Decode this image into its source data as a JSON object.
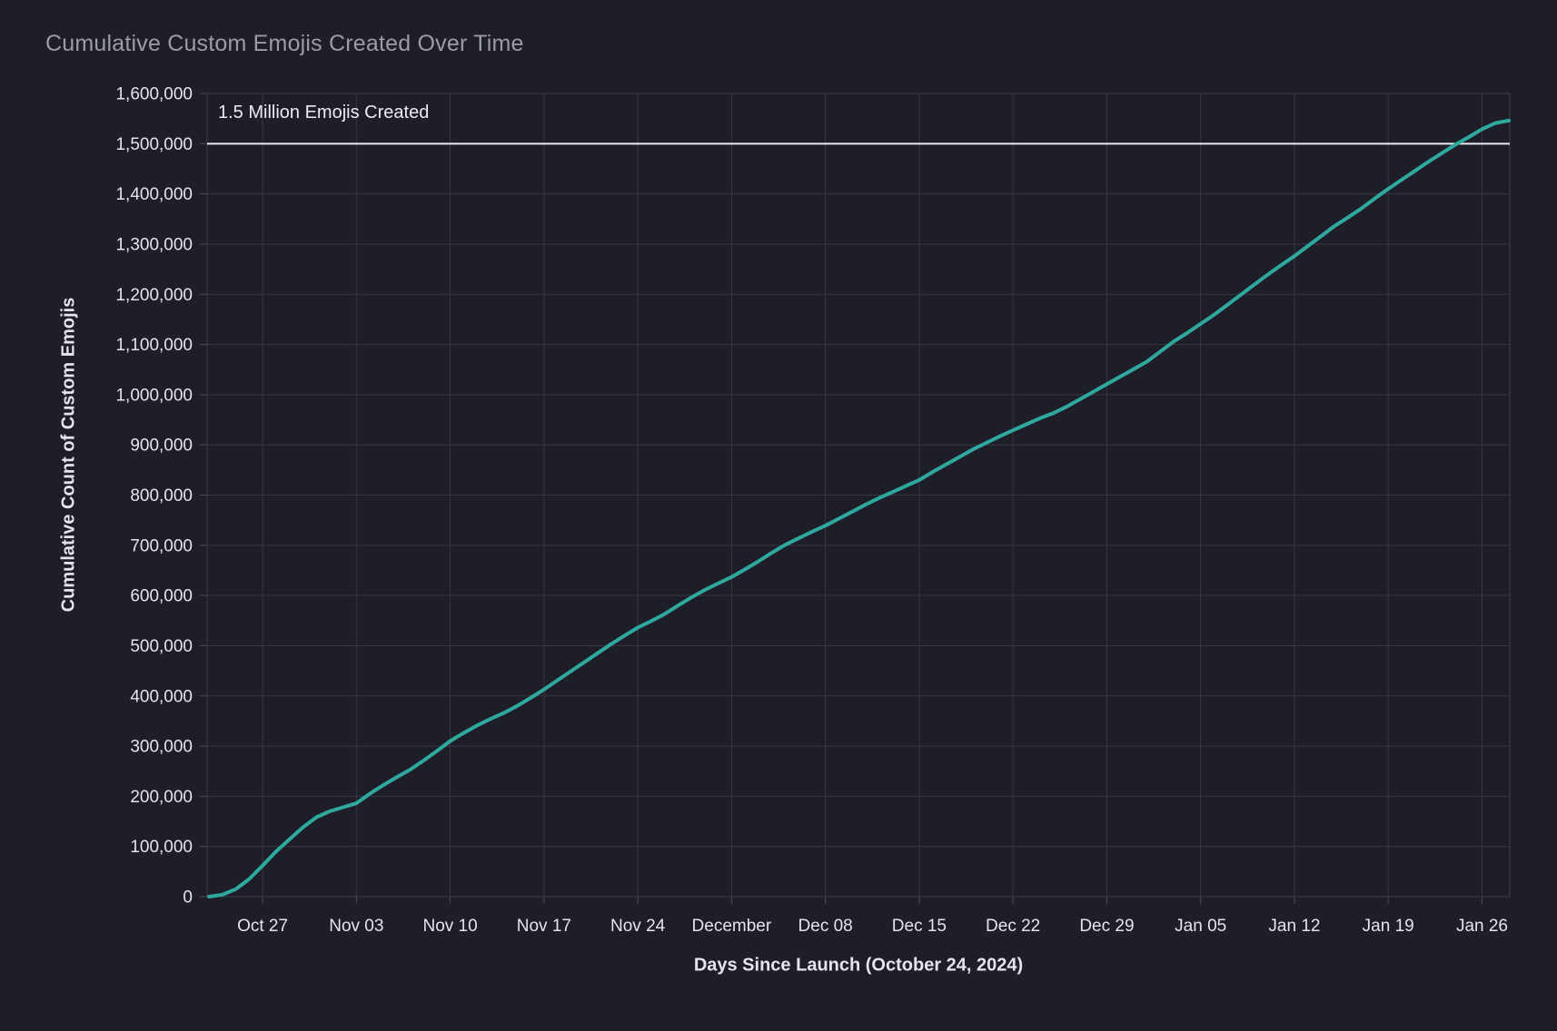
{
  "page": {
    "title": "Cumulative Custom Emojis Created Over Time"
  },
  "colors": {
    "background": "#1e1e28",
    "gridline": "#373742",
    "plot_border": "#3d3d49",
    "tick_mark": "#4b4b57",
    "tick_label": "#e4e4eb",
    "title": "#9b9ca7",
    "axis_title": "#e4e4eb",
    "series_line": "#2fa89e",
    "reference_line": "#ebebf2"
  },
  "chart_data": {
    "type": "line",
    "title": "Cumulative Custom Emojis Created Over Time",
    "xlabel": "Days Since Launch (October 24, 2024)",
    "ylabel": "Cumulative Count of Custom Emojis",
    "x_unit": "days since launch (Oct 24, 2024)",
    "xlim": [
      -1.14,
      96.07
    ],
    "ylim": [
      0,
      1600000
    ],
    "grid": true,
    "legend": "none",
    "x_ticks": [
      {
        "day": 3,
        "label": "Oct 27"
      },
      {
        "day": 10,
        "label": "Nov 03"
      },
      {
        "day": 17,
        "label": "Nov 10"
      },
      {
        "day": 24,
        "label": "Nov 17"
      },
      {
        "day": 31,
        "label": "Nov 24"
      },
      {
        "day": 38,
        "label": "December"
      },
      {
        "day": 45,
        "label": "Dec 08"
      },
      {
        "day": 52,
        "label": "Dec 15"
      },
      {
        "day": 59,
        "label": "Dec 22"
      },
      {
        "day": 66,
        "label": "Dec 29"
      },
      {
        "day": 73,
        "label": "Jan 05"
      },
      {
        "day": 80,
        "label": "Jan 12"
      },
      {
        "day": 87,
        "label": "Jan 19"
      },
      {
        "day": 94,
        "label": "Jan 26"
      }
    ],
    "y_ticks": [
      {
        "value": 0,
        "label": "0"
      },
      {
        "value": 100000,
        "label": "100,000"
      },
      {
        "value": 200000,
        "label": "200,000"
      },
      {
        "value": 300000,
        "label": "300,000"
      },
      {
        "value": 400000,
        "label": "400,000"
      },
      {
        "value": 500000,
        "label": "500,000"
      },
      {
        "value": 600000,
        "label": "600,000"
      },
      {
        "value": 700000,
        "label": "700,000"
      },
      {
        "value": 800000,
        "label": "800,000"
      },
      {
        "value": 900000,
        "label": "900,000"
      },
      {
        "value": 1000000,
        "label": "1,000,000"
      },
      {
        "value": 1100000,
        "label": "1,100,000"
      },
      {
        "value": 1200000,
        "label": "1,200,000"
      },
      {
        "value": 1300000,
        "label": "1,300,000"
      },
      {
        "value": 1400000,
        "label": "1,400,000"
      },
      {
        "value": 1500000,
        "label": "1,500,000"
      },
      {
        "value": 1600000,
        "label": "1,600,000"
      }
    ],
    "reference_line": {
      "value": 1500000,
      "label": "1.5 Million Emojis Created"
    },
    "series": [
      {
        "name": "Cumulative Custom Emojis",
        "color": "#2fa89e",
        "points": [
          [
            -1,
            0
          ],
          [
            0,
            4000
          ],
          [
            1,
            15000
          ],
          [
            2,
            35000
          ],
          [
            3,
            62000
          ],
          [
            4,
            90000
          ],
          [
            5,
            114000
          ],
          [
            6,
            138000
          ],
          [
            7,
            158000
          ],
          [
            8,
            170000
          ],
          [
            9,
            178000
          ],
          [
            10,
            186000
          ],
          [
            11,
            205000
          ],
          [
            12,
            222000
          ],
          [
            13,
            238000
          ],
          [
            14,
            253000
          ],
          [
            15,
            271000
          ],
          [
            16,
            290000
          ],
          [
            17,
            310000
          ],
          [
            18,
            326000
          ],
          [
            19,
            341000
          ],
          [
            20,
            354000
          ],
          [
            21,
            366000
          ],
          [
            22,
            380000
          ],
          [
            23,
            396000
          ],
          [
            24,
            413000
          ],
          [
            25,
            431000
          ],
          [
            26,
            449000
          ],
          [
            27,
            467000
          ],
          [
            28,
            485000
          ],
          [
            29,
            503000
          ],
          [
            30,
            520000
          ],
          [
            31,
            536000
          ],
          [
            32,
            549000
          ],
          [
            33,
            563000
          ],
          [
            34,
            580000
          ],
          [
            35,
            596000
          ],
          [
            36,
            611000
          ],
          [
            37,
            624000
          ],
          [
            38,
            637000
          ],
          [
            39,
            652000
          ],
          [
            40,
            668000
          ],
          [
            41,
            685000
          ],
          [
            42,
            701000
          ],
          [
            43,
            714000
          ],
          [
            44,
            727000
          ],
          [
            45,
            739000
          ],
          [
            46,
            753000
          ],
          [
            47,
            767000
          ],
          [
            48,
            781000
          ],
          [
            49,
            794000
          ],
          [
            50,
            806000
          ],
          [
            51,
            818000
          ],
          [
            52,
            830000
          ],
          [
            53,
            846000
          ],
          [
            54,
            861000
          ],
          [
            55,
            876000
          ],
          [
            56,
            891000
          ],
          [
            57,
            904000
          ],
          [
            58,
            917000
          ],
          [
            59,
            929000
          ],
          [
            60,
            941000
          ],
          [
            61,
            953000
          ],
          [
            62,
            963000
          ],
          [
            63,
            976000
          ],
          [
            64,
            991000
          ],
          [
            65,
            1006000
          ],
          [
            66,
            1021000
          ],
          [
            67,
            1036000
          ],
          [
            68,
            1051000
          ],
          [
            69,
            1066000
          ],
          [
            70,
            1086000
          ],
          [
            71,
            1106000
          ],
          [
            72,
            1123000
          ],
          [
            73,
            1141000
          ],
          [
            74,
            1159000
          ],
          [
            75,
            1179000
          ],
          [
            76,
            1199000
          ],
          [
            77,
            1219000
          ],
          [
            78,
            1239000
          ],
          [
            79,
            1258000
          ],
          [
            80,
            1276000
          ],
          [
            81,
            1296000
          ],
          [
            82,
            1316000
          ],
          [
            83,
            1336000
          ],
          [
            84,
            1353000
          ],
          [
            85,
            1371000
          ],
          [
            86,
            1391000
          ],
          [
            87,
            1410000
          ],
          [
            88,
            1428000
          ],
          [
            89,
            1446000
          ],
          [
            90,
            1464000
          ],
          [
            91,
            1481000
          ],
          [
            92,
            1498000
          ],
          [
            93,
            1513000
          ],
          [
            94,
            1529000
          ],
          [
            95,
            1541000
          ],
          [
            96,
            1546000
          ]
        ]
      }
    ]
  }
}
